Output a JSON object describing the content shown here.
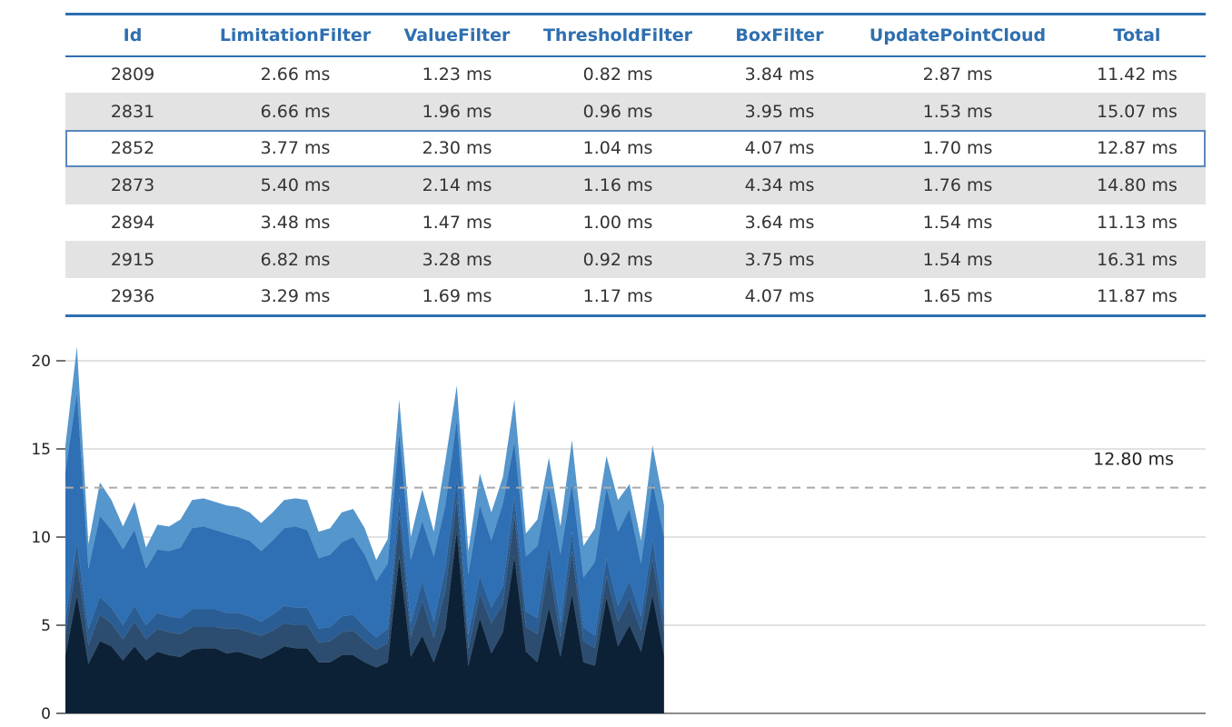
{
  "table": {
    "columns": [
      "Id",
      "LimitationFilter",
      "ValueFilter",
      "ThresholdFilter",
      "BoxFilter",
      "UpdatePointCloud",
      "Total"
    ],
    "rows": [
      [
        "2809",
        "2.66 ms",
        "1.23 ms",
        "0.82 ms",
        "3.84 ms",
        "2.87 ms",
        "11.42 ms"
      ],
      [
        "2831",
        "6.66 ms",
        "1.96 ms",
        "0.96 ms",
        "3.95 ms",
        "1.53 ms",
        "15.07 ms"
      ],
      [
        "2852",
        "3.77 ms",
        "2.30 ms",
        "1.04 ms",
        "4.07 ms",
        "1.70 ms",
        "12.87 ms"
      ],
      [
        "2873",
        "5.40 ms",
        "2.14 ms",
        "1.16 ms",
        "4.34 ms",
        "1.76 ms",
        "14.80 ms"
      ],
      [
        "2894",
        "3.48 ms",
        "1.47 ms",
        "1.00 ms",
        "3.64 ms",
        "1.54 ms",
        "11.13 ms"
      ],
      [
        "2915",
        "6.82 ms",
        "3.28 ms",
        "0.92 ms",
        "3.75 ms",
        "1.54 ms",
        "16.31 ms"
      ],
      [
        "2936",
        "3.29 ms",
        "1.69 ms",
        "1.17 ms",
        "4.07 ms",
        "1.65 ms",
        "11.87 ms"
      ]
    ],
    "selected_row": 2
  },
  "chart_data": {
    "type": "area",
    "stacked": true,
    "ylim": [
      0,
      20
    ],
    "yticks": [
      0,
      5,
      10,
      15,
      20
    ],
    "x_count": 65,
    "x_visible_fraction": 0.525,
    "average_line": {
      "value": 12.8,
      "label": "12.80 ms"
    },
    "colors": [
      "#0d2136",
      "#2c4d6f",
      "#2a5d93",
      "#2f6fb4",
      "#5596cc"
    ],
    "series": [
      {
        "values": [
          3.3,
          6.7,
          2.8,
          4.1,
          3.8,
          3.0,
          3.8,
          3.0,
          3.5,
          3.3,
          3.2,
          3.6,
          3.7,
          3.7,
          3.4,
          3.5,
          3.3,
          3.1,
          3.4,
          3.8,
          3.7,
          3.7,
          2.9,
          2.9,
          3.3,
          3.3,
          2.9,
          2.6,
          2.9,
          8.9,
          3.2,
          4.4,
          2.9,
          4.8,
          10.4,
          2.7,
          5.4,
          3.4,
          4.6,
          8.9,
          3.5,
          2.9,
          6.0,
          3.2,
          6.8,
          2.9,
          2.7,
          6.6,
          3.8,
          5.0,
          3.5,
          6.7,
          3.3
        ]
      },
      {
        "values": [
          1.2,
          2.0,
          1.1,
          1.5,
          1.3,
          1.2,
          1.4,
          1.2,
          1.3,
          1.3,
          1.3,
          1.3,
          1.2,
          1.2,
          1.4,
          1.3,
          1.3,
          1.3,
          1.3,
          1.3,
          1.3,
          1.3,
          1.1,
          1.2,
          1.3,
          1.4,
          1.2,
          1.0,
          1.1,
          2.3,
          1.1,
          2.0,
          1.4,
          2.2,
          1.8,
          1.0,
          1.4,
          1.7,
          1.6,
          2.4,
          1.4,
          1.6,
          2.4,
          1.1,
          2.4,
          1.2,
          1.0,
          1.2,
          1.4,
          1.5,
          1.2,
          2.1,
          1.3
        ]
      },
      {
        "values": [
          0.8,
          1.0,
          0.9,
          1.0,
          0.9,
          0.8,
          0.9,
          0.8,
          0.9,
          0.9,
          0.9,
          1.0,
          1.0,
          1.0,
          0.9,
          0.9,
          0.9,
          0.8,
          0.9,
          1.0,
          1.0,
          1.0,
          0.8,
          0.8,
          0.9,
          0.9,
          0.8,
          0.7,
          0.8,
          1.0,
          0.8,
          1.1,
          0.9,
          1.2,
          1.1,
          0.8,
          1.0,
          0.9,
          1.0,
          1.0,
          0.9,
          0.9,
          1.2,
          0.8,
          1.1,
          0.8,
          0.7,
          1.0,
          0.9,
          1.0,
          0.8,
          1.1,
          0.9
        ]
      },
      {
        "values": [
          8.4,
          8.5,
          3.4,
          4.6,
          4.4,
          4.3,
          4.3,
          3.2,
          3.6,
          3.7,
          4.0,
          4.6,
          4.7,
          4.5,
          4.5,
          4.3,
          4.3,
          4.0,
          4.2,
          4.4,
          4.6,
          4.4,
          4.0,
          4.1,
          4.2,
          4.4,
          4.1,
          3.2,
          3.7,
          3.7,
          3.6,
          3.4,
          3.7,
          3.6,
          3.4,
          3.4,
          4.0,
          3.8,
          4.7,
          3.1,
          3.1,
          4.1,
          3.2,
          3.9,
          2.7,
          2.8,
          4.2,
          4.0,
          4.2,
          4.1,
          3.0,
          3.2,
          4.5
        ]
      },
      {
        "values": [
          1.5,
          2.6,
          1.4,
          1.9,
          1.7,
          1.3,
          1.6,
          1.2,
          1.4,
          1.4,
          1.6,
          1.6,
          1.6,
          1.6,
          1.6,
          1.7,
          1.6,
          1.6,
          1.6,
          1.6,
          1.6,
          1.7,
          1.5,
          1.5,
          1.7,
          1.6,
          1.5,
          1.2,
          1.4,
          1.9,
          1.3,
          1.8,
          1.4,
          2.5,
          1.9,
          1.3,
          1.8,
          1.6,
          1.5,
          2.4,
          1.3,
          1.5,
          1.7,
          1.6,
          2.5,
          1.8,
          1.9,
          1.8,
          1.8,
          1.4,
          1.3,
          2.1,
          1.8
        ]
      }
    ]
  }
}
